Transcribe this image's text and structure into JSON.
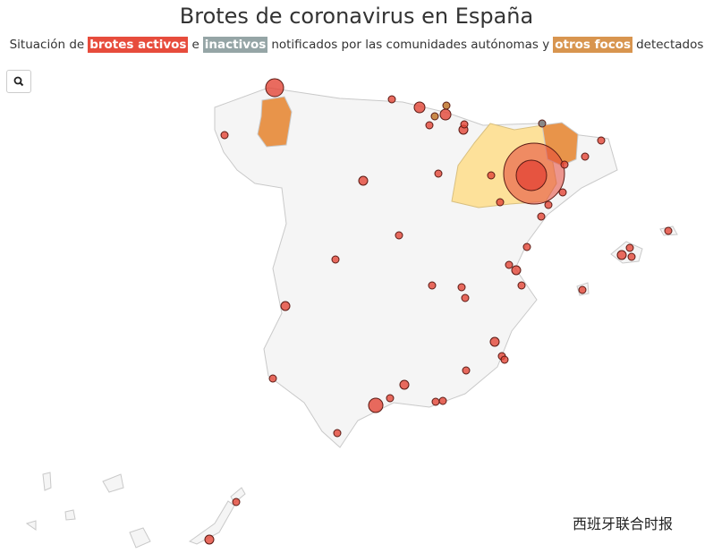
{
  "header": {
    "title": "Brotes de coronavirus en España",
    "subtitle": {
      "prefix": "Situación de",
      "active": "brotes activos",
      "connector": "e",
      "inactive": "inactivos",
      "middle": "notificados por las comunidades autónomas y",
      "other": "otros focos",
      "suffix": "detectados"
    }
  },
  "watermark": "西班牙联合时报"
}
